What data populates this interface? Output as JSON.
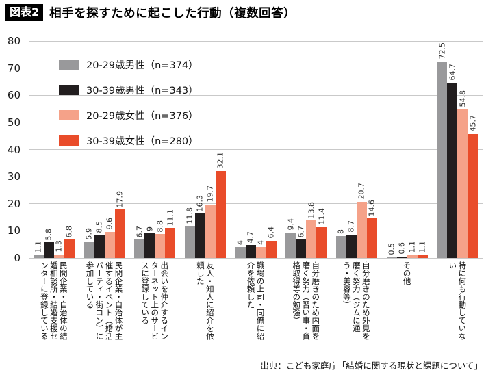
{
  "title": {
    "badge": "図表2",
    "text": "相手を探すために起こした行動（複数回答）"
  },
  "source": "出典：こども家庭庁「結婚に関する現状と課題について」",
  "chart_data": {
    "type": "bar",
    "title": "相手を探すために起こした行動（複数回答）",
    "ylim": [
      0,
      80
    ],
    "yticks": [
      0,
      10,
      20,
      30,
      40,
      50,
      60,
      70,
      80
    ],
    "grid": true,
    "legend_position": "top-left",
    "value_labels": "rotated-90-above-bars",
    "categories": [
      "民間企業・自治体の結婚相談所・結婚支援センターに登録している",
      "民間企業・自治体が主催するイベント（婚活パーティ・街コン）に参加している",
      "出会いを仲介するインターネット上のサービスに登録している",
      "友人・知人に紹介を依頼した",
      "職場の上司・同僚に紹介を依頼した",
      "自分磨きのため内面を磨く努力（習い事・資格取得等の勉強）",
      "自分磨きのため外見を磨く努力（ジムに通う・美容等）",
      "その他",
      "特に何も行動していない"
    ],
    "series": [
      {
        "name": "20-29歳男性（n=374）",
        "color": "#99999b",
        "values": [
          1.1,
          5.9,
          6.7,
          11.8,
          4,
          9.4,
          8,
          0.5,
          72.5
        ]
      },
      {
        "name": "30-39歳男性（n=343）",
        "color": "#221e1f",
        "values": [
          5.8,
          8.5,
          9,
          16.3,
          4.7,
          6.7,
          8.7,
          0.6,
          64.7
        ]
      },
      {
        "name": "20-29歳女性（n=376）",
        "color": "#f5a289",
        "values": [
          1.3,
          9.6,
          8.8,
          19.7,
          4,
          13.8,
          20.7,
          1.1,
          54.8
        ]
      },
      {
        "name": "30-39歳女性（n=280）",
        "color": "#e94c2a",
        "values": [
          6.8,
          17.9,
          11.1,
          32.1,
          6.4,
          11.4,
          14.6,
          1.1,
          45.7
        ]
      }
    ]
  }
}
